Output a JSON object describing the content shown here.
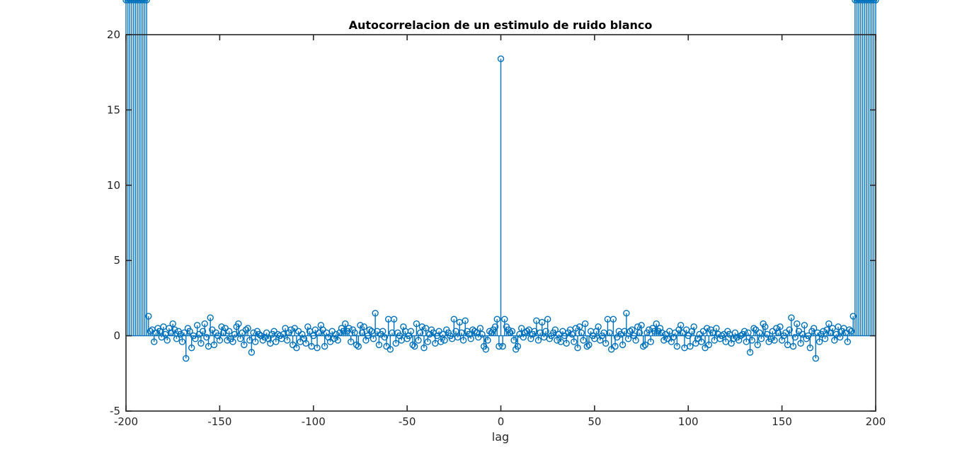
{
  "colors": {
    "series": "#0072BD",
    "axes": "#262626",
    "background": "#ffffff"
  },
  "chart_data": {
    "type": "stem",
    "title": "Autocorrelacion de un estimulo de ruido blanco",
    "xlabel": "lag",
    "ylabel": "",
    "xlim": [
      -200,
      200
    ],
    "ylim": [
      -5,
      20
    ],
    "xticks": [
      -200,
      -150,
      -100,
      -50,
      0,
      50,
      100,
      150,
      200
    ],
    "yticks": [
      -5,
      0,
      5,
      10,
      15,
      20
    ],
    "xtick_labels": [
      "-200",
      "-150",
      "-100",
      "-50",
      "0",
      "50",
      "100",
      "150",
      "200"
    ],
    "ytick_labels": [
      "-5",
      "0",
      "5",
      "10",
      "15",
      "20"
    ],
    "grid": false,
    "box": true,
    "marker": "circle",
    "symmetric": true,
    "peak": {
      "x": 0,
      "y": 18.4
    },
    "positive_lags": [
      1,
      2,
      3,
      4,
      5,
      6,
      7,
      8,
      9,
      10,
      11,
      12,
      13,
      14,
      15,
      16,
      17,
      18,
      19,
      20,
      21,
      22,
      23,
      24,
      25,
      26,
      27,
      28,
      29,
      30,
      31,
      32,
      33,
      34,
      35,
      36,
      37,
      38,
      39,
      40,
      41,
      42,
      43,
      44,
      45,
      46,
      47,
      48,
      49,
      50,
      51,
      52,
      53,
      54,
      55,
      56,
      57,
      58,
      59,
      60,
      61,
      62,
      63,
      64,
      65,
      66,
      67,
      68,
      69,
      70,
      71,
      72,
      73,
      74,
      75,
      76,
      77,
      78,
      79,
      80,
      81,
      82,
      83,
      84,
      85,
      86,
      87,
      88,
      89,
      90,
      91,
      92,
      93,
      94,
      95,
      96,
      97,
      98,
      99,
      100,
      101,
      102,
      103,
      104,
      105,
      106,
      107,
      108,
      109,
      110,
      111,
      112,
      113,
      114,
      115,
      116,
      117,
      118,
      119,
      120,
      121,
      122,
      123,
      124,
      125,
      126,
      127,
      128,
      129,
      130,
      131,
      132,
      133,
      134,
      135,
      136,
      137,
      138,
      139,
      140,
      141,
      142,
      143,
      144,
      145,
      146,
      147,
      148,
      149,
      150,
      151,
      152,
      153,
      154,
      155,
      156,
      157,
      158,
      159,
      160,
      161,
      162,
      163,
      164,
      165,
      166,
      167,
      168,
      169,
      170,
      171,
      172,
      173,
      174,
      175,
      176,
      177,
      178,
      179,
      180,
      181,
      182,
      183,
      184,
      185,
      186,
      187,
      188,
      189,
      190,
      191,
      192,
      193,
      194,
      195,
      196,
      197,
      198,
      199,
      200
    ],
    "positive_values": [
      -0.7,
      1.1,
      0.6,
      0.4,
      0.2,
      0.3,
      -0.3,
      -0.9,
      -0.7,
      0.1,
      0.5,
      -0.1,
      0.2,
      0.3,
      0.4,
      -0.2,
      0.1,
      0.3,
      1.0,
      -0.3,
      0.2,
      0.9,
      -0.1,
      0.3,
      1.1,
      -0.2,
      0.0,
      0.2,
      0.4,
      -0.3,
      0.1,
      -0.4,
      0.3,
      0.0,
      -0.5,
      0.2,
      0.4,
      0.1,
      -0.4,
      0.5,
      -0.8,
      0.6,
      0.2,
      -0.3,
      0.8,
      -0.7,
      -0.6,
      0.3,
      0.0,
      -0.2,
      0.3,
      0.6,
      -0.3,
      0.0,
      0.2,
      -0.5,
      1.1,
      0.2,
      -0.9,
      1.1,
      -0.7,
      -0.1,
      0.3,
      0.1,
      -0.6,
      0.3,
      1.5,
      -0.2,
      0.3,
      0.4,
      0.0,
      -0.3,
      0.6,
      0.2,
      0.7,
      -0.7,
      -0.6,
      0.2,
      0.4,
      -0.4,
      0.5,
      0.3,
      0.8,
      0.3,
      0.5,
      0.2,
      -0.3,
      0.1,
      -0.2,
      0.3,
      -0.4,
      -0.1,
      0.2,
      -0.7,
      0.4,
      0.7,
      0.2,
      -0.8,
      0.4,
      0.0,
      -0.7,
      0.3,
      0.6,
      -0.5,
      -0.2,
      0.1,
      -0.4,
      0.3,
      -0.8,
      0.5,
      -0.6,
      0.4,
      0.2,
      -0.3,
      0.5,
      0.1,
      -0.2,
      0.0,
      0.1,
      -0.4,
      0.3,
      0.1,
      -0.5,
      -0.2,
      0.2,
      -0.1,
      -0.3,
      0.0,
      0.1,
      0.3,
      -0.4,
      0.2,
      -1.1,
      -0.3,
      0.5,
      0.4,
      -0.6,
      0.2,
      -0.2,
      0.8,
      0.6,
      0.1,
      -0.4,
      -0.2,
      0.3,
      -0.3,
      0.5,
      0.2,
      0.6,
      -0.3,
      0.0,
      0.2,
      -0.6,
      0.4,
      1.2,
      -0.7,
      -0.1,
      0.8,
      0.3,
      -0.5,
      0.1,
      0.7,
      -0.2,
      0.0,
      -0.8,
      0.3,
      0.5,
      -1.5,
      0.2,
      -0.4,
      0.1,
      0.3,
      -0.2,
      0.4,
      0.8,
      0.2,
      0.5,
      -0.3,
      0.1,
      0.6,
      -0.1,
      0.3,
      0.5,
      0.2,
      -0.4,
      0.4,
      0.3,
      1.3
    ]
  }
}
